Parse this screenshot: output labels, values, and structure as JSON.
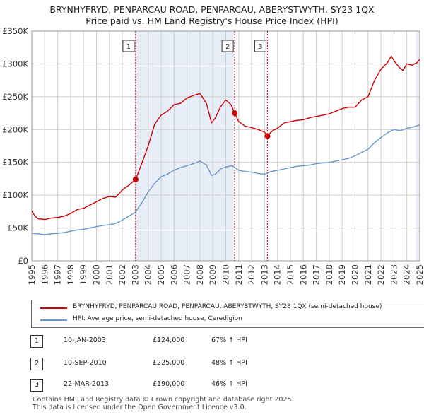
{
  "title_line1": "BRYNHYFRYD, PENPARCAU ROAD, PENPARCAU, ABERYSTWYTH, SY23 1QX",
  "title_line2": "Price paid vs. HM Land Registry's House Price Index (HPI)",
  "colors": {
    "price": "#cc0000",
    "hpi": "#6a96cc",
    "shade": "#e8eef7",
    "vline": "#cc0000",
    "grid": "#cccccc"
  },
  "legend": {
    "price_label": "BRYNHYFRYD, PENPARCAU ROAD, PENPARCAU, ABERYSTWYTH, SY23 1QX (semi-detached house)",
    "hpi_label": "HPI: Average price, semi-detached house, Ceredigion"
  },
  "transactions": [
    {
      "num": "1",
      "date": "10-JAN-2003",
      "price": "£124,000",
      "hpi": "67% ↑ HPI"
    },
    {
      "num": "2",
      "date": "10-SEP-2010",
      "price": "£225,000",
      "hpi": "48% ↑ HPI"
    },
    {
      "num": "3",
      "date": "22-MAR-2013",
      "price": "£190,000",
      "hpi": "46% ↑ HPI"
    }
  ],
  "footer_line1": "Contains HM Land Registry data © Crown copyright and database right 2025.",
  "footer_line2": "This data is licensed under the Open Government Licence v3.0.",
  "chart_data": {
    "type": "line",
    "title": "Price paid vs. HM Land Registry's House Price Index (HPI)",
    "xlabel": "",
    "ylabel": "",
    "xlim": [
      1995,
      2025
    ],
    "ylim": [
      0,
      350000
    ],
    "yticks": [
      0,
      50000,
      100000,
      150000,
      200000,
      250000,
      300000,
      350000
    ],
    "ytick_labels": [
      "£0",
      "£50K",
      "£100K",
      "£150K",
      "£200K",
      "£250K",
      "£300K",
      "£350K"
    ],
    "xticks": [
      "1995",
      "1996",
      "1997",
      "1998",
      "1999",
      "2000",
      "2001",
      "2002",
      "2003",
      "2004",
      "2005",
      "2006",
      "2007",
      "2008",
      "2009",
      "2010",
      "2011",
      "2012",
      "2013",
      "2014",
      "2015",
      "2016",
      "2017",
      "2018",
      "2019",
      "2020",
      "2021",
      "2022",
      "2023",
      "2024",
      "2025"
    ],
    "grid": true,
    "shaded_ranges": [
      [
        2003.03,
        2010.69
      ],
      [
        2024.7,
        2025.0
      ]
    ],
    "markers": [
      {
        "label": "1",
        "x": 2003.03,
        "y": 124000
      },
      {
        "label": "2",
        "x": 2010.69,
        "y": 225000
      },
      {
        "label": "3",
        "x": 2013.22,
        "y": 190000
      }
    ],
    "series": [
      {
        "name": "BRYNHYFRYD, PENPARCAU ROAD, PENPARCAU, ABERYSTWYTH, SY23 1QX (semi-detached house)",
        "x": [
          1995.0,
          1995.25,
          1995.5,
          1996.0,
          1996.5,
          1997.0,
          1997.5,
          1998.0,
          1998.5,
          1999.0,
          1999.5,
          2000.0,
          2000.5,
          2001.0,
          2001.5,
          2002.0,
          2002.5,
          2003.03,
          2003.5,
          2004.0,
          2004.5,
          2005.0,
          2005.5,
          2006.0,
          2006.5,
          2007.0,
          2007.5,
          2008.0,
          2008.5,
          2008.9,
          2009.2,
          2009.6,
          2010.0,
          2010.4,
          2010.69,
          2011.0,
          2011.5,
          2012.0,
          2012.5,
          2013.0,
          2013.22,
          2013.6,
          2014.0,
          2014.5,
          2015.0,
          2015.5,
          2016.0,
          2016.5,
          2017.0,
          2017.5,
          2018.0,
          2018.5,
          2019.0,
          2019.5,
          2020.0,
          2020.5,
          2021.0,
          2021.5,
          2022.0,
          2022.5,
          2022.8,
          2023.0,
          2023.4,
          2023.7,
          2024.0,
          2024.4,
          2024.8,
          2025.0
        ],
        "y": [
          76000,
          68000,
          64000,
          63000,
          65000,
          66000,
          68000,
          72000,
          78000,
          80000,
          85000,
          90000,
          95000,
          98000,
          97000,
          108000,
          115000,
          124000,
          148000,
          175000,
          208000,
          222000,
          228000,
          238000,
          240000,
          248000,
          252000,
          255000,
          240000,
          210000,
          218000,
          235000,
          245000,
          238000,
          225000,
          212000,
          205000,
          203000,
          200000,
          196000,
          190000,
          198000,
          202000,
          210000,
          212000,
          214000,
          215000,
          218000,
          220000,
          222000,
          224000,
          228000,
          232000,
          234000,
          234000,
          245000,
          250000,
          275000,
          292000,
          302000,
          312000,
          305000,
          295000,
          290000,
          300000,
          298000,
          302000,
          307000
        ]
      },
      {
        "name": "HPI: Average price, semi-detached house, Ceredigion",
        "x": [
          1995.0,
          1995.5,
          1996.0,
          1996.5,
          1997.0,
          1997.5,
          1998.0,
          1998.5,
          1999.0,
          1999.5,
          2000.0,
          2000.5,
          2001.0,
          2001.5,
          2002.0,
          2002.5,
          2003.0,
          2003.5,
          2004.0,
          2004.5,
          2005.0,
          2005.5,
          2006.0,
          2006.5,
          2007.0,
          2007.5,
          2008.0,
          2008.5,
          2008.9,
          2009.2,
          2009.6,
          2010.0,
          2010.5,
          2011.0,
          2011.5,
          2012.0,
          2012.5,
          2013.0,
          2013.5,
          2014.0,
          2014.5,
          2015.0,
          2015.5,
          2016.0,
          2016.5,
          2017.0,
          2017.5,
          2018.0,
          2018.5,
          2019.0,
          2019.5,
          2020.0,
          2020.5,
          2021.0,
          2021.5,
          2022.0,
          2022.5,
          2023.0,
          2023.5,
          2024.0,
          2024.5,
          2025.0
        ],
        "y": [
          42000,
          41000,
          40000,
          41000,
          42000,
          43000,
          45000,
          47000,
          48000,
          50000,
          52000,
          54000,
          55000,
          57000,
          62000,
          68000,
          74000,
          88000,
          105000,
          118000,
          128000,
          132000,
          138000,
          142000,
          145000,
          148000,
          152000,
          146000,
          130000,
          132000,
          140000,
          143000,
          145000,
          138000,
          136000,
          135000,
          133000,
          132000,
          136000,
          138000,
          140000,
          142000,
          144000,
          145000,
          146000,
          148000,
          149000,
          150000,
          152000,
          154000,
          156000,
          160000,
          165000,
          170000,
          180000,
          188000,
          195000,
          200000,
          198000,
          202000,
          204000,
          207000
        ]
      }
    ]
  }
}
